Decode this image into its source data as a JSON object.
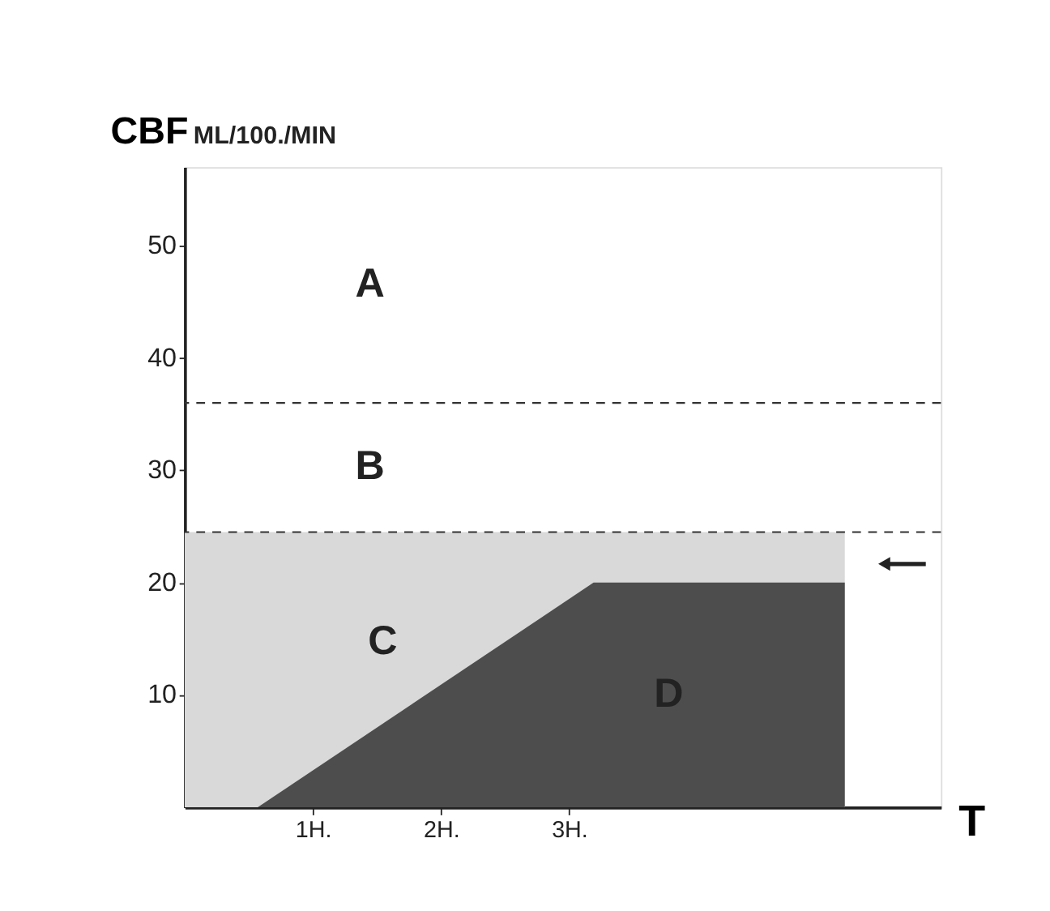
{
  "chart_data": {
    "type": "area",
    "ylabel": "CBF",
    "subtitle": "ML/100./MIN",
    "xlabel": "T",
    "xlim": [
      0,
      5.9
    ],
    "ylim": [
      0,
      57
    ],
    "xticks": [
      {
        "value": 1,
        "label": "1H."
      },
      {
        "value": 2,
        "label": "2H."
      },
      {
        "value": 3,
        "label": "3H."
      }
    ],
    "yticks": [
      10,
      20,
      30,
      40,
      50
    ],
    "series": [
      {
        "name": "C",
        "color": "#d9d9d9",
        "x": [
          0,
          5.15
        ],
        "values": [
          24.5,
          24.5
        ]
      },
      {
        "name": "D",
        "color": "#4d4d4d",
        "x": [
          0.57,
          3.19,
          5.15
        ],
        "values": [
          0,
          20,
          20
        ]
      }
    ],
    "ref_lines": [
      {
        "axis": "y",
        "value": 36,
        "line_style": "dashed",
        "color": "#333333"
      },
      {
        "axis": "y",
        "value": 24.5,
        "line_style": "dashed",
        "color": "#333333"
      }
    ],
    "annotations": [
      "A",
      "B"
    ],
    "grid": false
  }
}
